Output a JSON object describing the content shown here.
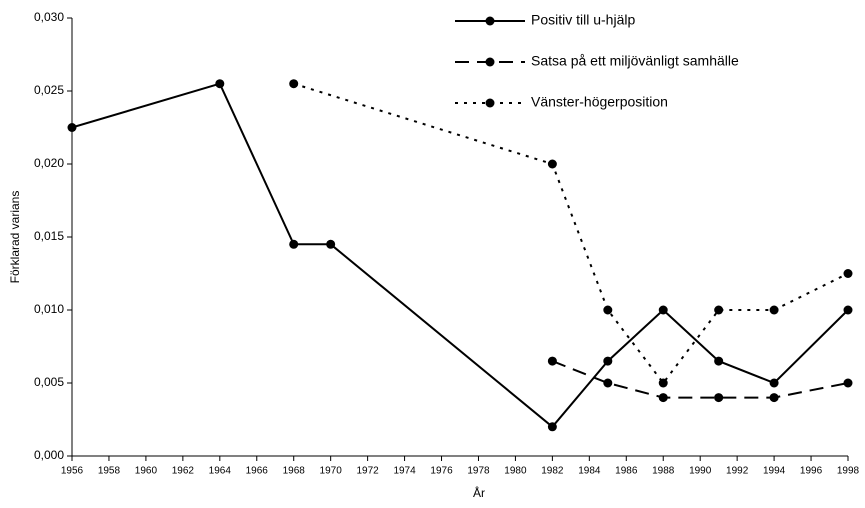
{
  "chart_data": {
    "type": "line",
    "x_label": "År",
    "y_label": "Förklarad varians",
    "xlim": [
      1956,
      1998
    ],
    "xticks": [
      1956,
      1958,
      1960,
      1962,
      1964,
      1966,
      1968,
      1970,
      1972,
      1974,
      1976,
      1978,
      1980,
      1982,
      1984,
      1986,
      1988,
      1990,
      1992,
      1994,
      1996,
      1998
    ],
    "ylim": [
      0,
      0.03
    ],
    "yticks": [
      {
        "value": 0,
        "label": "0,000"
      },
      {
        "value": 0.005,
        "label": "0,005"
      },
      {
        "value": 0.01,
        "label": "0,010"
      },
      {
        "value": 0.015,
        "label": "0,015"
      },
      {
        "value": 0.02,
        "label": "0,020"
      },
      {
        "value": 0.025,
        "label": "0,025"
      },
      {
        "value": 0.03,
        "label": "0,030"
      }
    ],
    "grid": false,
    "legend": "top-right",
    "series": [
      {
        "name": "Positiv till u-hjälp",
        "color": "#000000",
        "dash": "solid",
        "x": [
          1956,
          1964,
          1968,
          1970,
          1982,
          1985,
          1988,
          1991,
          1994,
          1998
        ],
        "values": [
          0.0225,
          0.0255,
          0.0145,
          0.0145,
          0.002,
          0.0065,
          0.01,
          0.0065,
          0.005,
          0.01
        ]
      },
      {
        "name": "Satsa på ett miljövänligt samhälle",
        "color": "#000000",
        "dash": "dashed",
        "x": [
          1982,
          1985,
          1988,
          1991,
          1994,
          1998
        ],
        "values": [
          0.0065,
          0.005,
          0.004,
          0.004,
          0.004,
          0.005
        ]
      },
      {
        "name": "Vänster-högerposition",
        "color": "#000000",
        "dash": "dotted",
        "x": [
          1968,
          1982,
          1985,
          1988,
          1991,
          1994,
          1998
        ],
        "values": [
          0.0255,
          0.02,
          0.01,
          0.005,
          0.01,
          0.01,
          0.0125
        ]
      }
    ]
  }
}
